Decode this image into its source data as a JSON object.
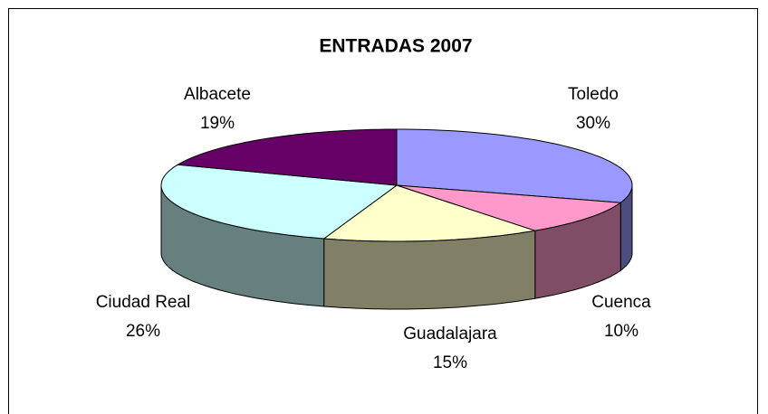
{
  "chart_data": {
    "type": "pie",
    "title": "ENTRADAS 2007",
    "categories": [
      "Toledo",
      "Cuenca",
      "Guadalajara",
      "Ciudad Real",
      "Albacete"
    ],
    "values": [
      30,
      10,
      15,
      26,
      19
    ],
    "value_labels": [
      "30%",
      "10%",
      "15%",
      "26%",
      "19%"
    ],
    "colors": [
      "#9999ff",
      "#ff99cc",
      "#ffffcc",
      "#ccffff",
      "#660066"
    ]
  }
}
